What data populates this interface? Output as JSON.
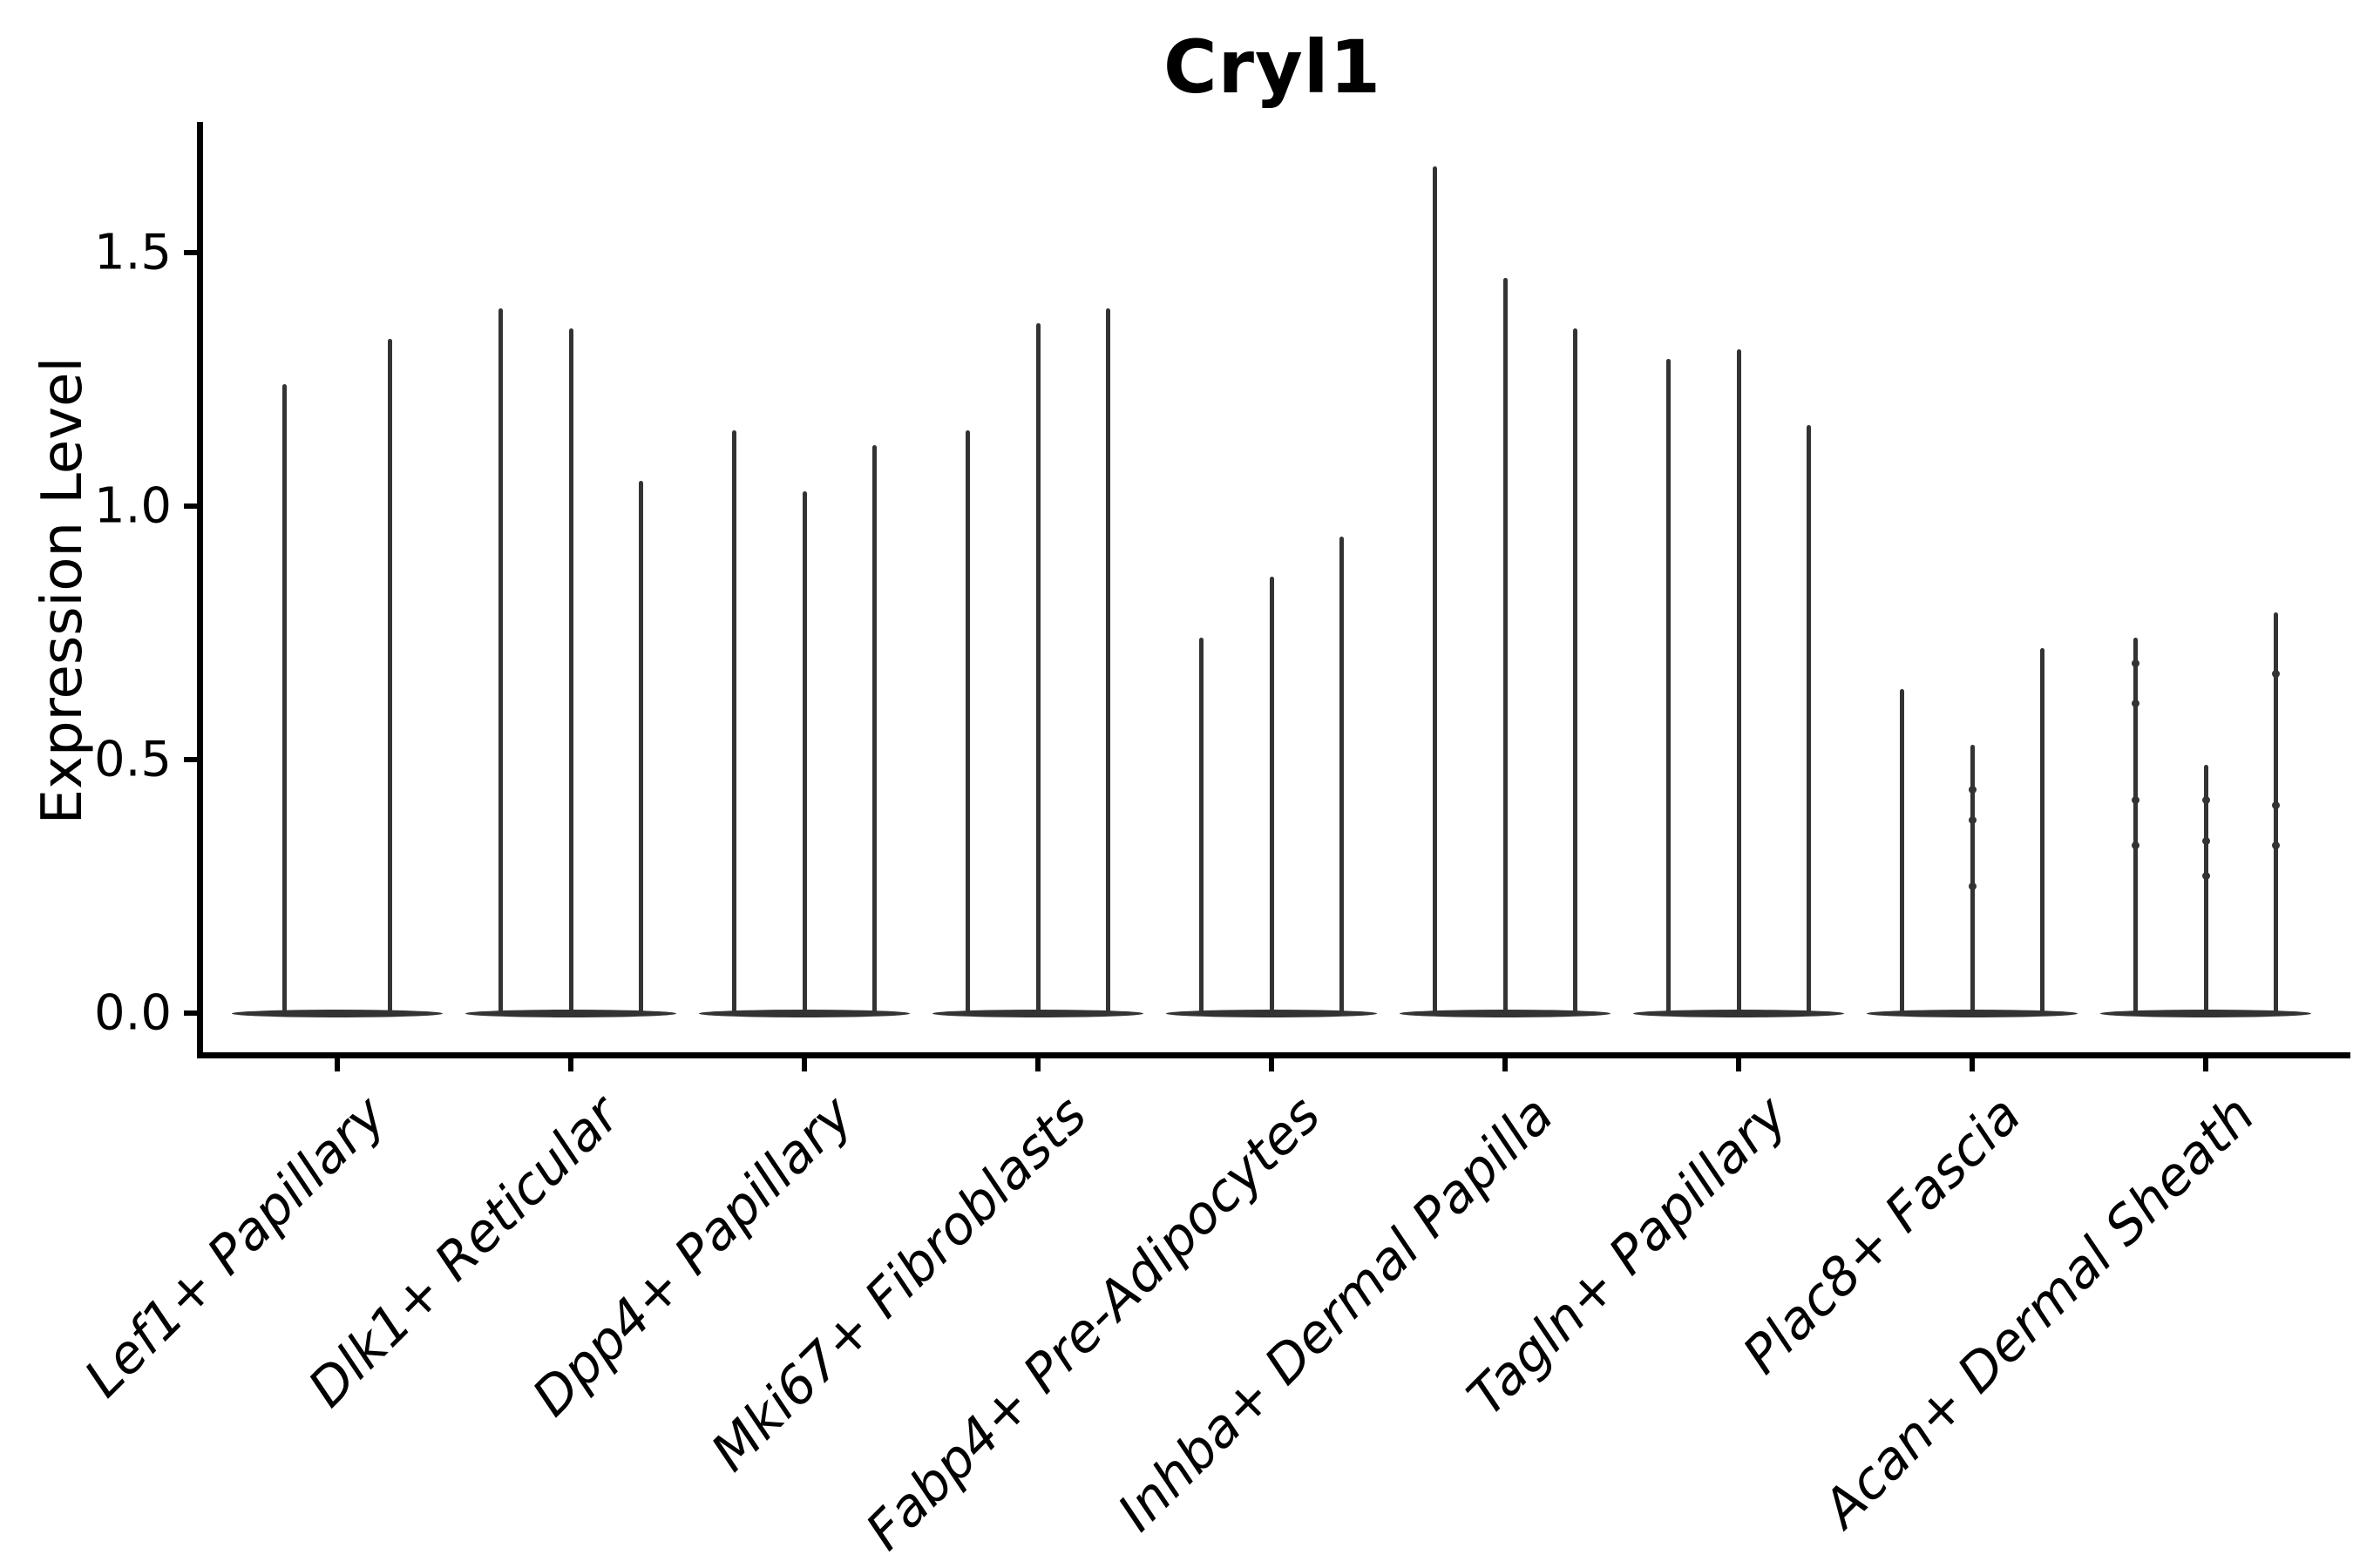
{
  "title": "Cryl1",
  "ylabel": "Expression Level",
  "colors": {
    "ink": "#000000",
    "violin": "#333333",
    "background": "#ffffff"
  },
  "chart_data": {
    "type": "violin",
    "title": "Cryl1",
    "xlabel": "",
    "ylabel": "Expression Level",
    "ylim": [
      -0.08,
      1.76
    ],
    "yticks": [
      {
        "value": 0.0,
        "label": "0.0"
      },
      {
        "value": 0.5,
        "label": "0.5"
      },
      {
        "value": 1.0,
        "label": "1.0"
      },
      {
        "value": 1.5,
        "label": "1.5"
      }
    ],
    "grid": false,
    "legend": null,
    "categories": [
      "Lef1+ Papillary",
      "Dlk1+ Reticular",
      "Dpp4+ Papillary",
      "Mki67+ Fibroblasts",
      "Fabp4+ Pre-Adipocytes",
      "Inhba+ Dermal Papilla",
      "Tagln+ Papillary",
      "Plac8+ Fascia",
      "Acan+ Dermal Sheath"
    ],
    "groups": [
      {
        "category": "Lef1+ Papillary",
        "violin_peaks": [
          1.24,
          1.33
        ],
        "dot_values": [
          [],
          []
        ]
      },
      {
        "category": "Dlk1+ Reticular",
        "violin_peaks": [
          1.39,
          1.35,
          1.05
        ],
        "dot_values": [
          [],
          [],
          []
        ]
      },
      {
        "category": "Dpp4+ Papillary",
        "violin_peaks": [
          1.15,
          1.03,
          1.12
        ],
        "dot_values": [
          [],
          [],
          []
        ]
      },
      {
        "category": "Mki67+ Fibroblasts",
        "violin_peaks": [
          1.15,
          1.36,
          1.39
        ],
        "dot_values": [
          [],
          [],
          []
        ]
      },
      {
        "category": "Fabp4+ Pre-Adipocytes",
        "violin_peaks": [
          0.74,
          0.86,
          0.94
        ],
        "dot_values": [
          [],
          [],
          []
        ]
      },
      {
        "category": "Inhba+ Dermal Papilla",
        "violin_peaks": [
          1.67,
          1.45,
          1.35
        ],
        "dot_values": [
          [],
          [],
          []
        ]
      },
      {
        "category": "Tagln+ Papillary",
        "violin_peaks": [
          1.29,
          1.31,
          1.16
        ],
        "dot_values": [
          [],
          [],
          []
        ]
      },
      {
        "category": "Plac8+ Fascia",
        "violin_peaks": [
          0.64,
          0.53,
          0.72
        ],
        "dot_values": [
          [],
          [
            0.44,
            0.38,
            0.25
          ],
          []
        ]
      },
      {
        "category": "Acan+ Dermal Sheath",
        "violin_peaks": [
          0.74,
          0.49,
          0.79
        ],
        "dot_values": [
          [
            0.69,
            0.61,
            0.42,
            0.33
          ],
          [
            0.42,
            0.34,
            0.27
          ],
          [
            0.67,
            0.41,
            0.33
          ]
        ]
      }
    ]
  }
}
